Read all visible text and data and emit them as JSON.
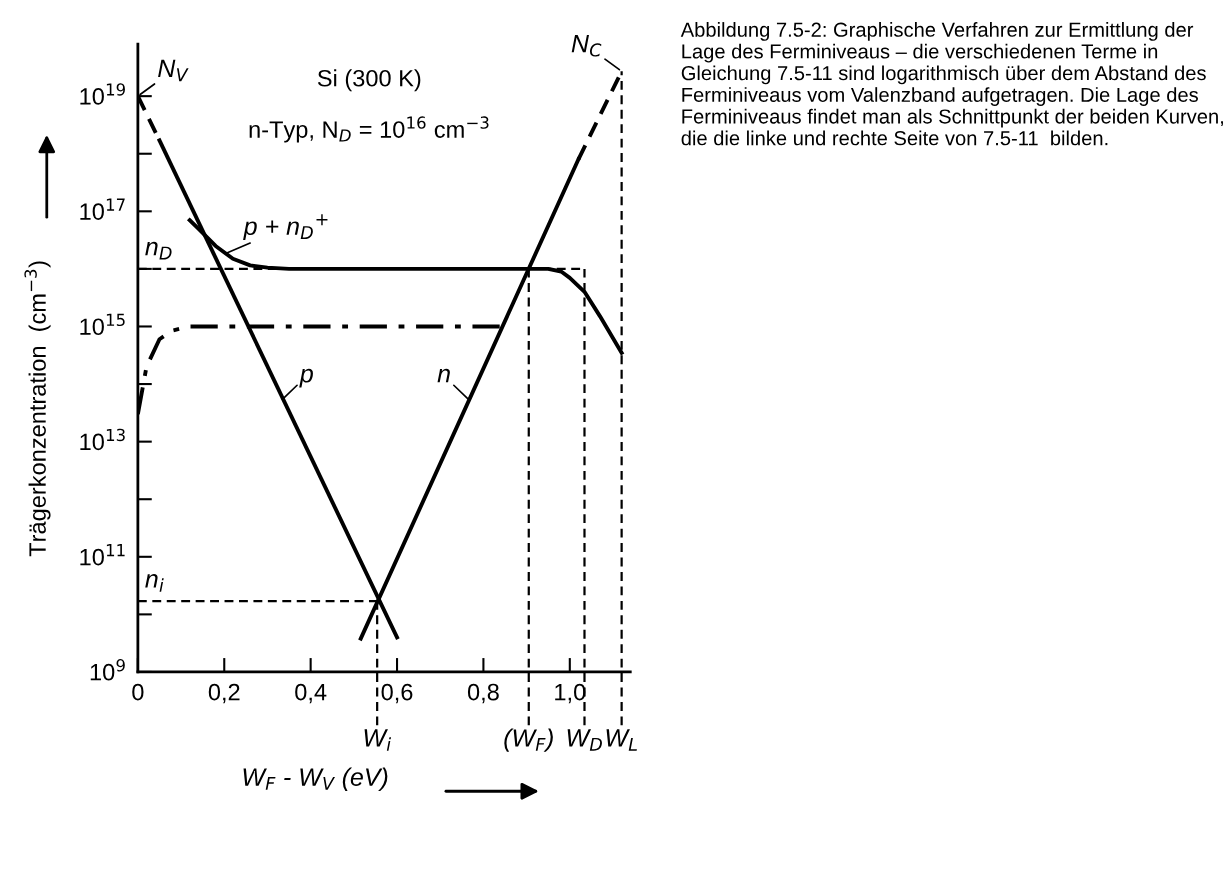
{
  "chart_data": {
    "type": "line",
    "title": "Si (300 K)",
    "subtitle": "n-Typ, N$_{D}$ = 10$^{16}$ cm$^{−3}$",
    "xlabel": "W$_{F}$ - W$_{V}$ (eV)",
    "ylabel": "Trägerkonzentration  (cm$^{−3}$)",
    "xlim": [
      0,
      1.14
    ],
    "xticks": [
      0,
      {
        "value": 0.2,
        "label": "0,2"
      },
      {
        "value": 0.4,
        "label": "0,4"
      },
      {
        "value": 0.6,
        "label": "0,6"
      },
      {
        "value": 0.8,
        "label": "0,8"
      },
      {
        "value": 1.0,
        "label": "1,0"
      }
    ],
    "log": "y",
    "ylim": [
      1000000000.0,
      8e+19
    ],
    "yticks": [
      {
        "value": 1000000000.0,
        "label": "10$^{9}$"
      },
      {
        "value": 10000000000.0,
        "label": null
      },
      {
        "value": 100000000000.0,
        "label": "10$^{11}$"
      },
      {
        "value": 1000000000000.0,
        "label": null
      },
      {
        "value": 10000000000000.0,
        "label": "10$^{13}$"
      },
      {
        "value": 100000000000000.0,
        "label": null
      },
      {
        "value": 1000000000000000.0,
        "label": "10$^{15}$"
      },
      {
        "value": 1e+16,
        "label": null
      },
      {
        "value": 1e+17,
        "label": "10$^{17}$"
      },
      {
        "value": 1e+18,
        "label": null
      },
      {
        "value": 1e+19,
        "label": "10$^{19}$"
      }
    ],
    "grid": false,
    "legend": false,
    "marker": "none",
    "series": [
      {
        "color": "#000000",
        "line_style": "dashed",
        "x": [
          0,
          0.05
        ],
        "values": [
          1e+19,
          1.7e+18
        ]
      },
      {
        "color": "#000000",
        "line_style": "solid",
        "x": [
          0.05,
          0.6
        ],
        "values": [
          1.7e+18,
          4000000000.0
        ]
      },
      {
        "color": "#000000",
        "line_style": "solid",
        "x": [
          0.516,
          1.02
        ],
        "values": [
          3800000000.0,
          8e+17
        ]
      },
      {
        "color": "#000000",
        "line_style": "dashed",
        "x": [
          1.02,
          1.12
        ],
        "values": [
          8e+17,
          2.7e+19
        ]
      },
      {
        "color": "#000000",
        "line_style": "solid",
        "x": [
          0.12,
          0.14,
          0.18,
          0.22,
          0.26,
          0.3,
          0.35,
          0.5,
          0.7,
          0.9,
          0.95,
          0.98,
          1.0,
          1.034,
          1.07,
          1.12
        ],
        "values": [
          7e+16,
          5e+16,
          2.5e+16,
          1.5e+16,
          1.15e+16,
          1.05e+16,
          1e+16,
          1e+16,
          1e+16,
          1e+16,
          1e+16,
          9000000000000000.0,
          7000000000000000.0,
          4000000000000000.0,
          1500000000000000.0,
          350000000000000.0
        ]
      },
      {
        "color": "#000000",
        "line_style": "dashdot",
        "x": [
          0,
          0.02,
          0.05,
          0.08,
          0.12,
          0.3,
          0.6,
          0.846
        ],
        "values": [
          30000000000000.0,
          200000000000000.0,
          600000000000000.0,
          850000000000000.0,
          1000000000000000.0,
          1000000000000000.0,
          1000000000000000.0,
          1000000000000000.0
        ]
      }
    ],
    "ref_lines": [
      {
        "axis": "y",
        "value": 1e+16,
        "label": "n$_{D}$",
        "line_style": "dashed",
        "color": "#000000"
      },
      {
        "axis": "y",
        "value": 17000000000.0,
        "label": "n$_{i}$",
        "line_style": "dashed",
        "color": "#000000"
      },
      {
        "axis": "x",
        "value": 0.554,
        "label": "W$_{i}$",
        "line_style": "dashed",
        "color": "#000000"
      },
      {
        "axis": "x",
        "value": 0.905,
        "label": "(W$_{F}$)",
        "line_style": "dashed",
        "color": "#000000"
      },
      {
        "axis": "x",
        "value": 1.034,
        "label": "W$_{D}$",
        "line_style": "dashed",
        "color": "#000000"
      },
      {
        "axis": "x",
        "value": 1.12,
        "label": "W$_{L}$",
        "line_style": "dashed",
        "color": "#000000"
      }
    ],
    "annotations": [
      {
        "text": "N$_{V}$",
        "x": 0,
        "y": 1e+19
      },
      {
        "text": "N$_{C}$",
        "x": 1.12,
        "y": 2.7e+19
      },
      {
        "text": "p + n$_{D}$$^{+}$",
        "x": 0.2,
        "y": 1.8e+16
      },
      {
        "text": "p",
        "x": 0.33,
        "y": 50000000000000.0
      },
      {
        "text": "n",
        "x": 0.77,
        "y": 50000000000000.0
      },
      "Abbildung 7.5-2: Graphische Verfahren zur Ermittlung der Lage des Ferminiveaus – die verschiedenen Terme in Gleichung 7.5-11 sind logarithmisch über dem Abstand des Ferminiveaus vom Valenzband aufgetragen. Die Lage des Ferminiveaus findet man als Schnittpunkt der beiden Kurven, die die linke und rechte Seite von 7.5-11  bilden."
    ]
  }
}
